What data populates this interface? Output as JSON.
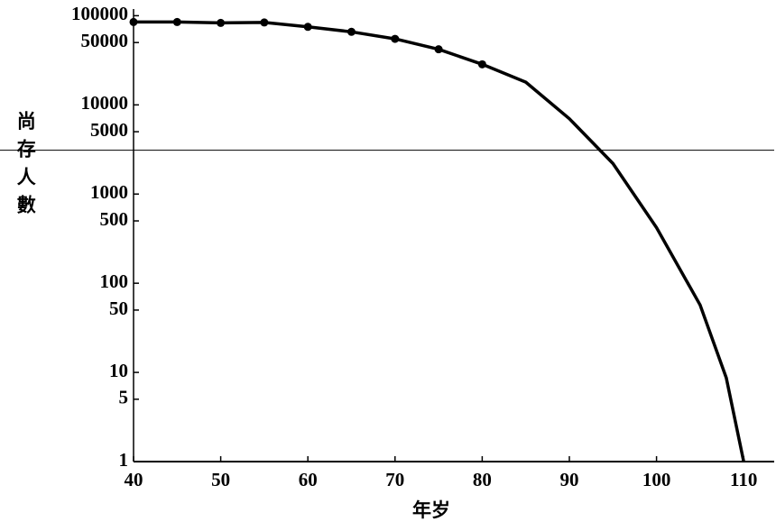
{
  "chart_data": {
    "type": "line",
    "y_label": "尚存人數",
    "x_label": "年岁",
    "xlim": [
      40,
      113.5
    ],
    "xticks": [
      40,
      50,
      60,
      70,
      80,
      90,
      100,
      110
    ],
    "ylim": [
      1,
      150000
    ],
    "log_y": true,
    "yticks": [
      1,
      5,
      10,
      50,
      100,
      500,
      1000,
      5000,
      10000,
      50000,
      100000
    ],
    "reference_line": 3100,
    "color": "#000000",
    "series": [
      {
        "x": [
          40,
          45,
          50,
          55,
          60,
          65,
          70,
          75,
          80
        ],
        "values": [
          85000,
          85000,
          83000,
          84000,
          75000,
          66000,
          55000,
          42000,
          28500
        ],
        "markers": true
      },
      {
        "x": [
          40,
          45,
          50,
          55,
          60,
          65,
          70,
          75,
          80,
          85,
          90,
          95,
          100,
          105,
          108,
          110
        ],
        "values": [
          85000,
          85000,
          83000,
          84000,
          75000,
          66000,
          55000,
          42000,
          28500,
          18000,
          7000,
          2200,
          420,
          57,
          8.7,
          1
        ],
        "markers": false
      }
    ]
  }
}
